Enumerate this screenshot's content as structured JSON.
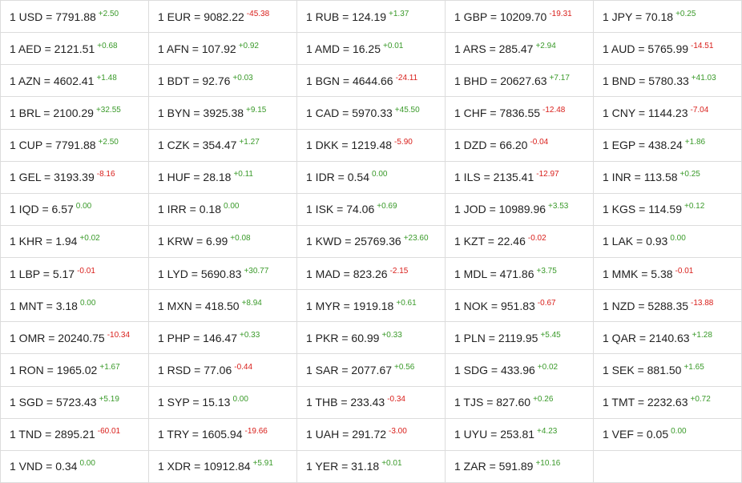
{
  "table": {
    "rows": [
      [
        [
          "1 USD = 7791.88",
          "+2.50"
        ],
        [
          "1 EUR = 9082.22",
          "-45.38"
        ],
        [
          "1 RUB = 124.19",
          "+1.37"
        ],
        [
          "1 GBP = 10209.70",
          "-19.31"
        ],
        [
          "1 JPY = 70.18",
          "+0.25"
        ]
      ],
      [
        [
          "1 AED = 2121.51",
          "+0.68"
        ],
        [
          "1 AFN = 107.92",
          "+0.92"
        ],
        [
          "1 AMD = 16.25",
          "+0.01"
        ],
        [
          "1 ARS = 285.47",
          "+2.94"
        ],
        [
          "1 AUD = 5765.99",
          "-14.51"
        ]
      ],
      [
        [
          "1 AZN = 4602.41",
          "+1.48"
        ],
        [
          "1 BDT = 92.76",
          "+0.03"
        ],
        [
          "1 BGN = 4644.66",
          "-24.11"
        ],
        [
          "1 BHD = 20627.63",
          "+7.17"
        ],
        [
          "1 BND = 5780.33",
          "+41.03"
        ]
      ],
      [
        [
          "1 BRL = 2100.29",
          "+32.55"
        ],
        [
          "1 BYN = 3925.38",
          "+9.15"
        ],
        [
          "1 CAD = 5970.33",
          "+45.50"
        ],
        [
          "1 CHF = 7836.55",
          "-12.48"
        ],
        [
          "1 CNY = 1144.23",
          "-7.04"
        ]
      ],
      [
        [
          "1 CUP = 7791.88",
          "+2.50"
        ],
        [
          "1 CZK = 354.47",
          "+1.27"
        ],
        [
          "1 DKK = 1219.48",
          "-5.90"
        ],
        [
          "1 DZD = 66.20",
          "-0.04"
        ],
        [
          "1 EGP = 438.24",
          "+1.86"
        ]
      ],
      [
        [
          "1 GEL = 3193.39",
          "-8.16"
        ],
        [
          "1 HUF = 28.18",
          "+0.11"
        ],
        [
          "1 IDR = 0.54",
          "0.00"
        ],
        [
          "1 ILS = 2135.41",
          "-12.97"
        ],
        [
          "1 INR = 113.58",
          "+0.25"
        ]
      ],
      [
        [
          "1 IQD = 6.57",
          "0.00"
        ],
        [
          "1 IRR = 0.18",
          "0.00"
        ],
        [
          "1 ISK = 74.06",
          "+0.69"
        ],
        [
          "1 JOD = 10989.96",
          "+3.53"
        ],
        [
          "1 KGS = 114.59",
          "+0.12"
        ]
      ],
      [
        [
          "1 KHR = 1.94",
          "+0.02"
        ],
        [
          "1 KRW = 6.99",
          "+0.08"
        ],
        [
          "1 KWD = 25769.36",
          "+23.60"
        ],
        [
          "1 KZT = 22.46",
          "-0.02"
        ],
        [
          "1 LAK = 0.93",
          "0.00"
        ]
      ],
      [
        [
          "1 LBP = 5.17",
          "-0.01"
        ],
        [
          "1 LYD = 5690.83",
          "+30.77"
        ],
        [
          "1 MAD = 823.26",
          "-2.15"
        ],
        [
          "1 MDL = 471.86",
          "+3.75"
        ],
        [
          "1 MMK = 5.38",
          "-0.01"
        ]
      ],
      [
        [
          "1 MNT = 3.18",
          "0.00"
        ],
        [
          "1 MXN = 418.50",
          "+8.94"
        ],
        [
          "1 MYR = 1919.18",
          "+0.61"
        ],
        [
          "1 NOK = 951.83",
          "-0.67"
        ],
        [
          "1 NZD = 5288.35",
          "-13.88"
        ]
      ],
      [
        [
          "1 OMR = 20240.75",
          "-10.34"
        ],
        [
          "1 PHP = 146.47",
          "+0.33"
        ],
        [
          "1 PKR = 60.99",
          "+0.33"
        ],
        [
          "1 PLN = 2119.95",
          "+5.45"
        ],
        [
          "1 QAR = 2140.63",
          "+1.28"
        ]
      ],
      [
        [
          "1 RON = 1965.02",
          "+1.67"
        ],
        [
          "1 RSD = 77.06",
          "-0.44"
        ],
        [
          "1 SAR = 2077.67",
          "+0.56"
        ],
        [
          "1 SDG = 433.96",
          "+0.02"
        ],
        [
          "1 SEK = 881.50",
          "+1.65"
        ]
      ],
      [
        [
          "1 SGD = 5723.43",
          "+5.19"
        ],
        [
          "1 SYP = 15.13",
          "0.00"
        ],
        [
          "1 THB = 233.43",
          "-0.34"
        ],
        [
          "1 TJS = 827.60",
          "+0.26"
        ],
        [
          "1 TMT = 2232.63",
          "+0.72"
        ]
      ],
      [
        [
          "1 TND = 2895.21",
          "-60.01"
        ],
        [
          "1 TRY = 1605.94",
          "-19.66"
        ],
        [
          "1 UAH = 291.72",
          "-3.00"
        ],
        [
          "1 UYU = 253.81",
          "+4.23"
        ],
        [
          "1 VEF = 0.05",
          "0.00"
        ]
      ],
      [
        [
          "1 VND = 0.34",
          "0.00"
        ],
        [
          "1 XDR = 10912.84",
          "+5.91"
        ],
        [
          "1 YER = 31.18",
          "+0.01"
        ],
        [
          "1 ZAR = 591.89",
          "+10.16"
        ]
      ]
    ]
  }
}
